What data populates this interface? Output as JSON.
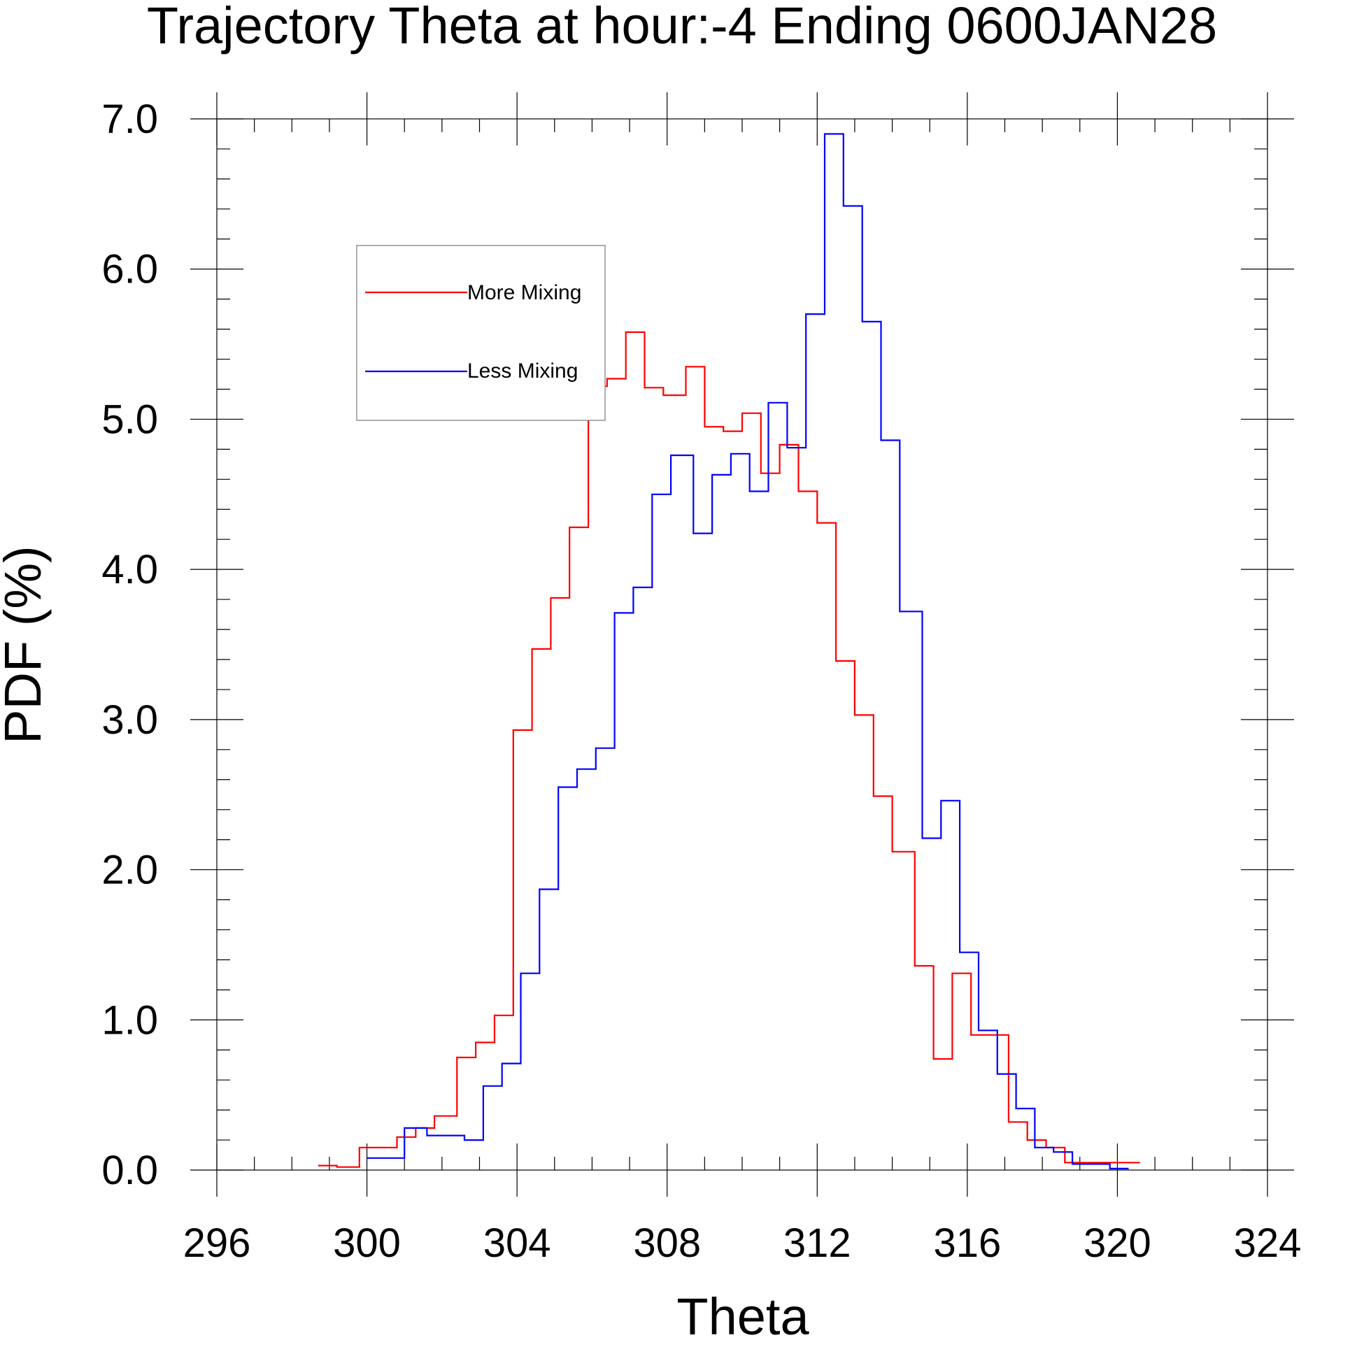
{
  "chart_data": {
    "type": "line",
    "subtype": "step-histogram",
    "title": "Trajectory Theta at hour:-4 Ending 0600JAN28",
    "xlabel": "Theta",
    "ylabel": "PDF (%)",
    "xlim": [
      296,
      324
    ],
    "ylim": [
      0,
      7
    ],
    "x_ticks": [
      "296",
      "300",
      "304",
      "308",
      "312",
      "316",
      "320",
      "324"
    ],
    "y_ticks": [
      "0.0",
      "1.0",
      "2.0",
      "3.0",
      "4.0",
      "5.0",
      "6.0",
      "7.0"
    ],
    "grid": false,
    "legend_position": "top-left",
    "series": [
      {
        "name": "More Mixing",
        "color": "#ff0000",
        "x": [
          298.7,
          299.2,
          299.8,
          300.3,
          300.8,
          301.3,
          301.8,
          302.4,
          302.9,
          303.4,
          303.9,
          304.4,
          304.9,
          305.4,
          305.9,
          306.4,
          306.9,
          307.4,
          307.9,
          308.5,
          309.0,
          309.5,
          310.0,
          310.5,
          311.0,
          311.5,
          312.0,
          312.5,
          313.0,
          313.5,
          314.0,
          314.6,
          315.1,
          315.6,
          316.1,
          316.6,
          317.1,
          317.6,
          318.1,
          318.6,
          319.1,
          319.6,
          320.1
        ],
        "values": [
          0.03,
          0.02,
          0.15,
          0.15,
          0.22,
          0.28,
          0.36,
          0.75,
          0.85,
          1.03,
          2.93,
          3.47,
          3.81,
          4.28,
          5.22,
          5.27,
          5.58,
          5.21,
          5.16,
          5.35,
          4.95,
          4.92,
          5.04,
          4.64,
          4.83,
          4.52,
          4.31,
          3.39,
          3.03,
          2.49,
          2.12,
          1.36,
          0.74,
          1.31,
          0.9,
          0.9,
          0.32,
          0.2,
          0.15,
          0.05,
          0.05,
          0.05,
          0.05
        ],
        "bin_edge_right": 320.6
      },
      {
        "name": "Less Mixing",
        "color": "#0000ff",
        "x": [
          300.0,
          300.5,
          301.0,
          301.6,
          302.1,
          302.6,
          303.1,
          303.6,
          304.1,
          304.6,
          305.1,
          305.6,
          306.1,
          306.6,
          307.1,
          307.6,
          308.1,
          308.7,
          309.2,
          309.7,
          310.2,
          310.7,
          311.2,
          311.7,
          312.2,
          312.7,
          313.2,
          313.7,
          314.2,
          314.8,
          315.3,
          315.8,
          316.3,
          316.8,
          317.3,
          317.8,
          318.3,
          318.8,
          319.3,
          319.8
        ],
        "values": [
          0.08,
          0.08,
          0.28,
          0.23,
          0.23,
          0.2,
          0.56,
          0.71,
          1.31,
          1.87,
          2.55,
          2.67,
          2.81,
          3.71,
          3.88,
          4.5,
          4.76,
          4.24,
          4.63,
          4.77,
          4.52,
          5.11,
          4.81,
          5.7,
          6.9,
          6.42,
          5.65,
          4.86,
          3.72,
          2.21,
          2.46,
          1.45,
          0.93,
          0.64,
          0.41,
          0.15,
          0.12,
          0.04,
          0.04,
          0.01
        ],
        "bin_edge_right": 320.3
      }
    ]
  }
}
